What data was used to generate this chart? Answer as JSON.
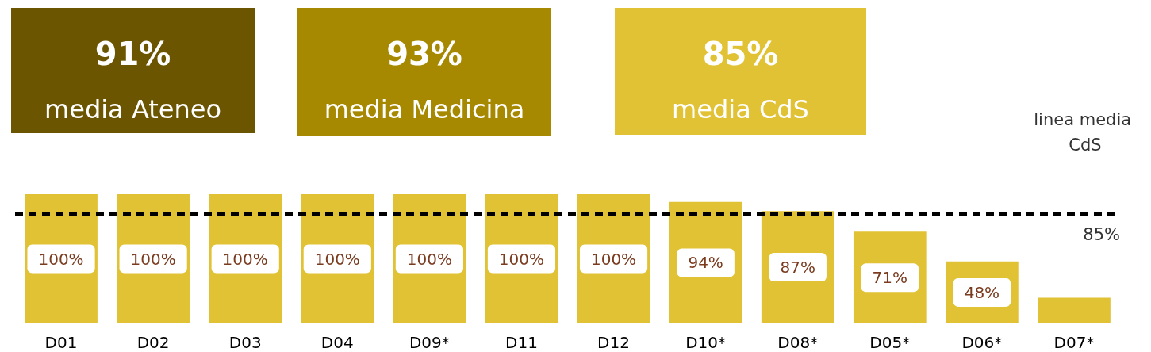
{
  "chart_data": {
    "type": "bar",
    "categories": [
      "D01",
      "D02",
      "D03",
      "D04",
      "D09*",
      "D11",
      "D12",
      "D10*",
      "D08*",
      "D05*",
      "D06*",
      "D07*"
    ],
    "values": [
      100,
      100,
      100,
      100,
      100,
      100,
      100,
      94,
      87,
      71,
      48,
      20
    ],
    "value_labels": [
      "100%",
      "100%",
      "100%",
      "100%",
      "100%",
      "100%",
      "100%",
      "94%",
      "87%",
      "71%",
      "48%",
      null
    ],
    "color": "#e0c234",
    "ylim": [
      0,
      100
    ],
    "tick_labels": "x",
    "ref_lines": [
      {
        "axis": "y",
        "value": 85,
        "label": "85%",
        "color": "#000000",
        "line_style": "dashed"
      }
    ],
    "annotations": [
      "91%",
      "media Ateneo",
      "93%",
      "media Medicina",
      "85%",
      "media CdS",
      "linea media CdS"
    ]
  }
}
